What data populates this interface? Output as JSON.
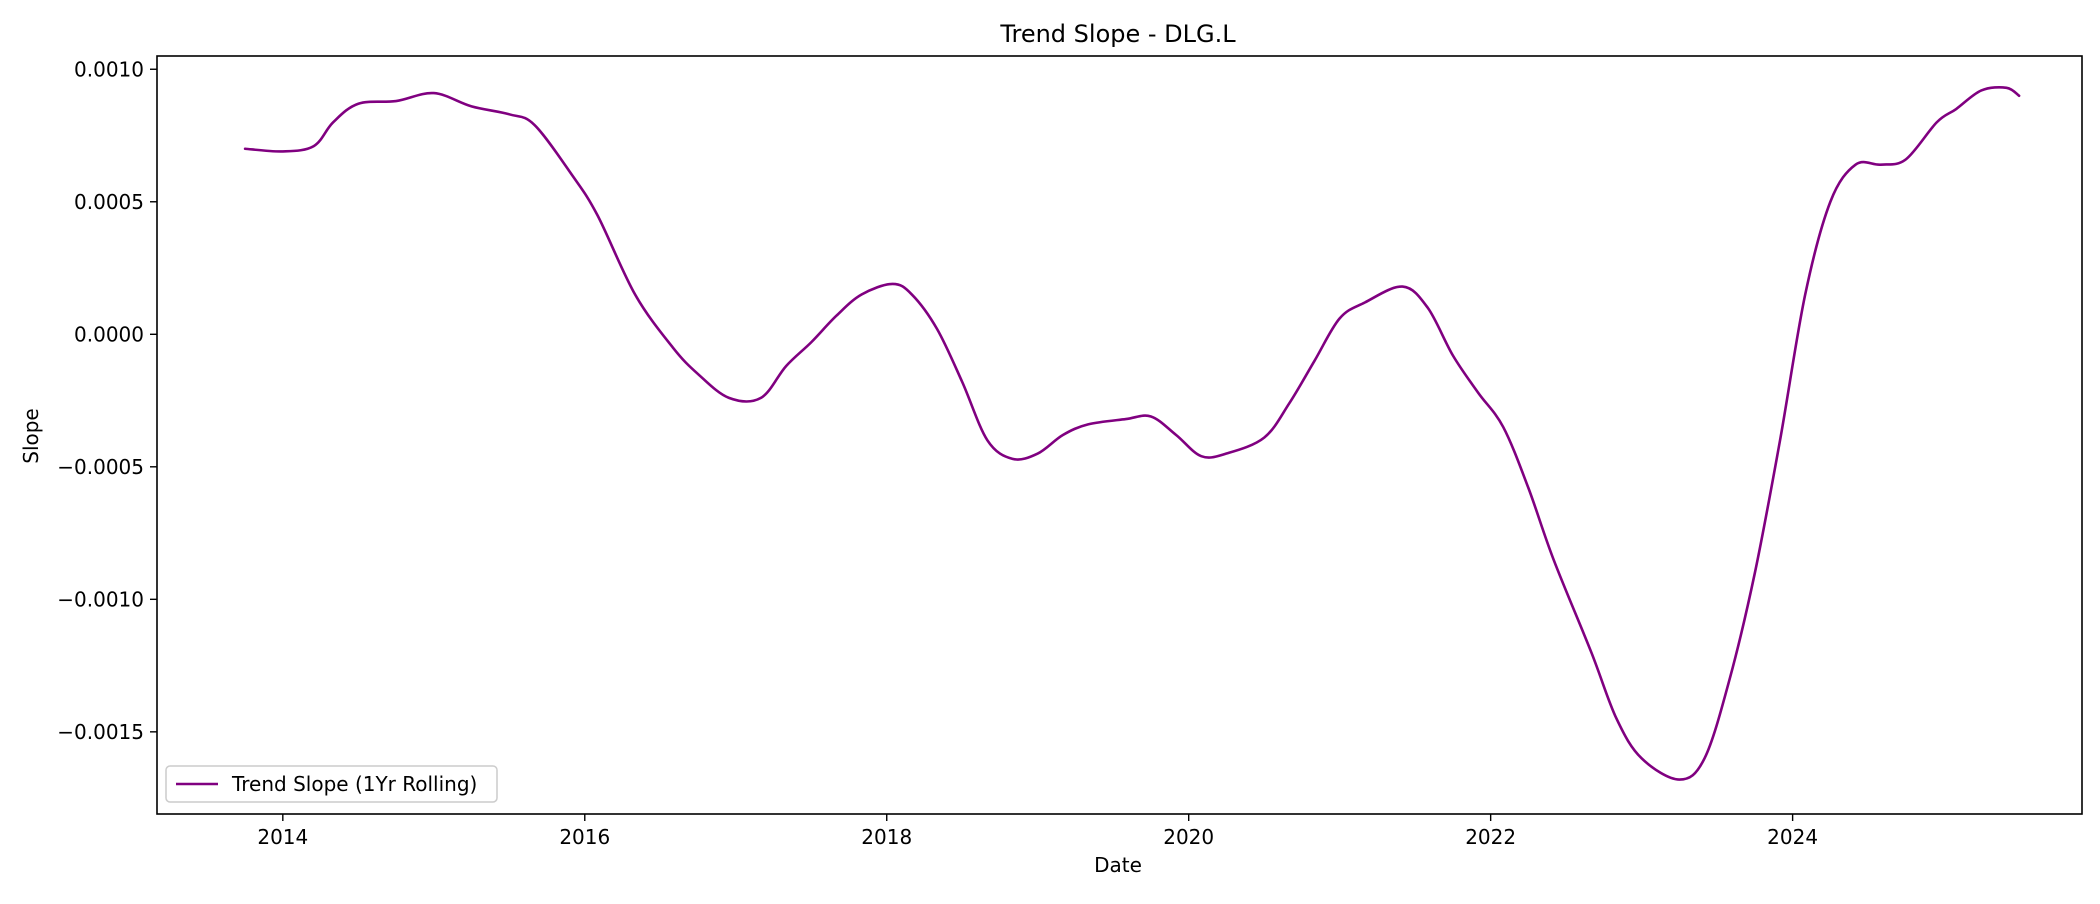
{
  "chart_data": {
    "type": "line",
    "title": "Trend Slope - DLG.L",
    "xlabel": "Date",
    "ylabel": "Slope",
    "x_ticks": [
      "2014",
      "2016",
      "2018",
      "2020",
      "2022",
      "2024"
    ],
    "y_ticks": [
      "0.0010",
      "0.0005",
      "0.0000",
      "−0.0005",
      "−0.0010",
      "−0.0015"
    ],
    "xlim": [
      "2013-03",
      "2025-12"
    ],
    "ylim": [
      -0.00181,
      0.00105
    ],
    "grid": false,
    "legend": {
      "position": "lower-left",
      "entries": [
        "Trend Slope (1Yr Rolling)"
      ]
    },
    "series": [
      {
        "name": "Trend Slope (1Yr Rolling)",
        "color": "#800080",
        "points": [
          {
            "x": "2013-10-01",
            "y": 0.0007
          },
          {
            "x": "2014-01-01",
            "y": 0.00069
          },
          {
            "x": "2014-03-15",
            "y": 0.00071
          },
          {
            "x": "2014-05-01",
            "y": 0.0008
          },
          {
            "x": "2014-07-01",
            "y": 0.00087
          },
          {
            "x": "2014-10-01",
            "y": 0.00088
          },
          {
            "x": "2015-01-01",
            "y": 0.00091
          },
          {
            "x": "2015-04-01",
            "y": 0.00086
          },
          {
            "x": "2015-07-01",
            "y": 0.00083
          },
          {
            "x": "2015-09-01",
            "y": 0.00079
          },
          {
            "x": "2015-12-01",
            "y": 0.0006
          },
          {
            "x": "2016-02-01",
            "y": 0.00045
          },
          {
            "x": "2016-05-01",
            "y": 0.00015
          },
          {
            "x": "2016-08-01",
            "y": -5e-05
          },
          {
            "x": "2016-10-01",
            "y": -0.00015
          },
          {
            "x": "2016-12-15",
            "y": -0.00024
          },
          {
            "x": "2017-03-01",
            "y": -0.00024
          },
          {
            "x": "2017-05-01",
            "y": -0.00012
          },
          {
            "x": "2017-07-01",
            "y": -3e-05
          },
          {
            "x": "2017-09-01",
            "y": 7e-05
          },
          {
            "x": "2017-11-01",
            "y": 0.00015
          },
          {
            "x": "2018-01-15",
            "y": 0.00019
          },
          {
            "x": "2018-03-01",
            "y": 0.00015
          },
          {
            "x": "2018-05-01",
            "y": 2e-05
          },
          {
            "x": "2018-07-01",
            "y": -0.00018
          },
          {
            "x": "2018-09-01",
            "y": -0.0004
          },
          {
            "x": "2018-11-01",
            "y": -0.00047
          },
          {
            "x": "2019-01-01",
            "y": -0.00045
          },
          {
            "x": "2019-03-01",
            "y": -0.00038
          },
          {
            "x": "2019-05-01",
            "y": -0.00034
          },
          {
            "x": "2019-08-01",
            "y": -0.00032
          },
          {
            "x": "2019-10-01",
            "y": -0.00031
          },
          {
            "x": "2019-12-01",
            "y": -0.00038
          },
          {
            "x": "2020-02-01",
            "y": -0.00046
          },
          {
            "x": "2020-04-01",
            "y": -0.00045
          },
          {
            "x": "2020-07-01",
            "y": -0.00039
          },
          {
            "x": "2020-09-01",
            "y": -0.00026
          },
          {
            "x": "2020-11-01",
            "y": -0.0001
          },
          {
            "x": "2021-01-01",
            "y": 6e-05
          },
          {
            "x": "2021-03-01",
            "y": 0.00012
          },
          {
            "x": "2021-06-01",
            "y": 0.00018
          },
          {
            "x": "2021-08-01",
            "y": 0.0001
          },
          {
            "x": "2021-10-01",
            "y": -8e-05
          },
          {
            "x": "2021-12-01",
            "y": -0.00022
          },
          {
            "x": "2022-02-01",
            "y": -0.00035
          },
          {
            "x": "2022-04-01",
            "y": -0.00058
          },
          {
            "x": "2022-06-01",
            "y": -0.00085
          },
          {
            "x": "2022-09-01",
            "y": -0.0012
          },
          {
            "x": "2022-11-01",
            "y": -0.00145
          },
          {
            "x": "2023-01-01",
            "y": -0.0016
          },
          {
            "x": "2023-04-01",
            "y": -0.00168
          },
          {
            "x": "2023-06-01",
            "y": -0.0016
          },
          {
            "x": "2023-08-01",
            "y": -0.0013
          },
          {
            "x": "2023-10-01",
            "y": -0.0009
          },
          {
            "x": "2023-12-01",
            "y": -0.0004
          },
          {
            "x": "2024-02-01",
            "y": 0.00015
          },
          {
            "x": "2024-04-01",
            "y": 0.0005
          },
          {
            "x": "2024-06-01",
            "y": 0.00064
          },
          {
            "x": "2024-08-01",
            "y": 0.00064
          },
          {
            "x": "2024-10-01",
            "y": 0.00066
          },
          {
            "x": "2024-12-15",
            "y": 0.0008
          },
          {
            "x": "2025-02-01",
            "y": 0.00085
          },
          {
            "x": "2025-04-01",
            "y": 0.00092
          },
          {
            "x": "2025-06-01",
            "y": 0.00093
          },
          {
            "x": "2025-07-01",
            "y": 0.0009
          }
        ]
      }
    ]
  }
}
